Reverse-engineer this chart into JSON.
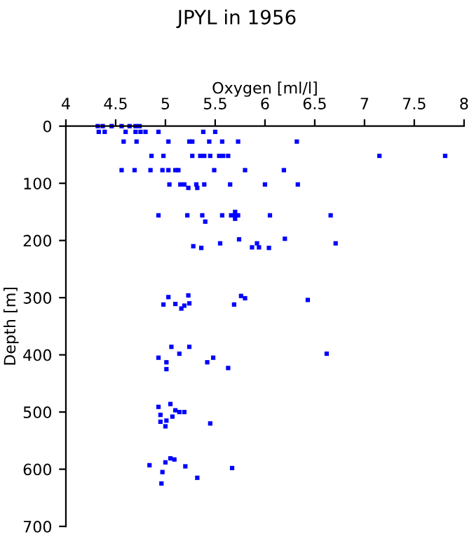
{
  "chart_data": {
    "type": "scatter",
    "title": "JPYL in 1956",
    "xlabel": "Oxygen [ml/l]",
    "ylabel": "Depth [m]",
    "xlim": [
      4,
      8
    ],
    "xticks": [
      4,
      4.5,
      5,
      5.5,
      6,
      6.5,
      7,
      7.5,
      8
    ],
    "ylim": [
      700,
      0
    ],
    "yticks": [
      0,
      100,
      200,
      300,
      400,
      500,
      600,
      700
    ],
    "grid": false,
    "marker": "square",
    "series": [
      {
        "color": "#0000ff",
        "x": [
          4.32,
          4.37,
          4.46,
          4.56,
          4.64,
          4.7,
          4.74,
          4.33,
          4.39,
          4.6,
          4.7,
          4.75,
          4.8,
          4.93,
          5.38,
          5.5,
          4.58,
          4.71,
          5.03,
          5.24,
          5.27,
          5.44,
          5.57,
          5.73,
          6.32,
          4.86,
          4.98,
          5.27,
          5.35,
          5.39,
          5.45,
          5.54,
          5.58,
          5.63,
          7.15,
          7.81,
          4.56,
          4.69,
          4.85,
          4.97,
          5.03,
          5.1,
          5.13,
          5.49,
          5.8,
          6.19,
          5.04,
          5.15,
          5.19,
          5.31,
          5.39,
          5.65,
          6.0,
          6.33,
          5.23,
          5.32,
          4.93,
          5.22,
          5.37,
          5.57,
          5.66,
          5.7,
          5.73,
          6.05,
          6.66,
          5.7,
          5.7,
          5.4,
          5.28,
          5.36,
          5.55,
          5.74,
          5.87,
          5.92,
          5.94,
          6.04,
          6.2,
          6.71,
          4.98,
          5.03,
          5.1,
          5.16,
          5.19,
          5.23,
          5.24,
          5.69,
          5.76,
          5.8,
          6.43,
          5.06,
          5.24,
          4.93,
          5.01,
          5.14,
          5.48,
          5.42,
          5.63,
          5.01,
          6.62,
          4.93,
          5.05,
          4.95,
          5.1,
          5.14,
          5.19,
          5.07,
          4.95,
          5.01,
          5.0,
          5.45,
          4.84,
          5.0,
          5.05,
          5.09,
          5.2,
          5.67,
          4.97,
          5.32,
          4.96
        ],
        "values": [
          0,
          0,
          0,
          0,
          0,
          0,
          0,
          10,
          10,
          10,
          10,
          10,
          10,
          10,
          10,
          10,
          27,
          27,
          27,
          27,
          27,
          27,
          27,
          27,
          27,
          52,
          52,
          52,
          52,
          52,
          52,
          52,
          52,
          52,
          52,
          52,
          77,
          77,
          77,
          77,
          77,
          77,
          77,
          77,
          77,
          77,
          102,
          102,
          102,
          102,
          102,
          102,
          102,
          102,
          108,
          108,
          156,
          156,
          156,
          156,
          156,
          156,
          156,
          156,
          156,
          150,
          162,
          167,
          210,
          213,
          205,
          198,
          212,
          205,
          212,
          213,
          197,
          205,
          312,
          299,
          311,
          319,
          314,
          296,
          310,
          312,
          297,
          301,
          304,
          386,
          386,
          405,
          413,
          398,
          405,
          413,
          423,
          425,
          398,
          491,
          486,
          505,
          497,
          500,
          500,
          508,
          517,
          515,
          525,
          520,
          593,
          588,
          581,
          583,
          595,
          598,
          605,
          615,
          625
        ]
      }
    ]
  }
}
